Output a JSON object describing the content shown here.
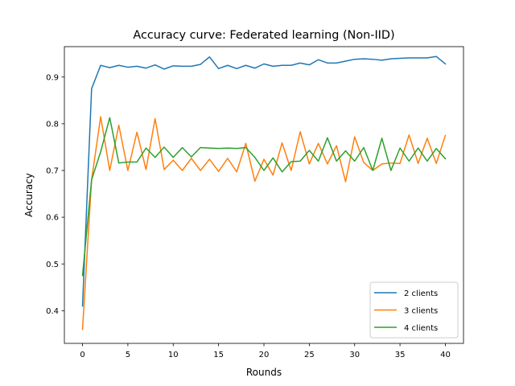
{
  "chart_data": {
    "type": "line",
    "title": "Accuracy curve: Federated learning (Non-IID)",
    "xlabel": "Rounds",
    "ylabel": "Accuracy",
    "xlim": [
      -2,
      42
    ],
    "ylim": [
      0.33,
      0.965
    ],
    "xticks": [
      0,
      5,
      10,
      15,
      20,
      25,
      30,
      35,
      40
    ],
    "yticks": [
      0.4,
      0.5,
      0.6,
      0.7,
      0.8,
      0.9
    ],
    "xtick_labels": [
      "0",
      "5",
      "10",
      "15",
      "20",
      "25",
      "30",
      "35",
      "40"
    ],
    "ytick_labels": [
      "0.4",
      "0.5",
      "0.6",
      "0.7",
      "0.8",
      "0.9"
    ],
    "grid": false,
    "legend_position": "lower-right",
    "x": [
      0,
      1,
      2,
      3,
      4,
      5,
      6,
      7,
      8,
      9,
      10,
      11,
      12,
      13,
      14,
      15,
      16,
      17,
      18,
      19,
      20,
      21,
      22,
      23,
      24,
      25,
      26,
      27,
      28,
      29,
      30,
      31,
      32,
      33,
      34,
      35,
      36,
      37,
      38,
      39,
      40
    ],
    "series": [
      {
        "name": "2 clients",
        "color": "#1f77b4",
        "values": [
          0.41,
          0.875,
          0.925,
          0.92,
          0.925,
          0.921,
          0.923,
          0.919,
          0.926,
          0.917,
          0.924,
          0.923,
          0.923,
          0.927,
          0.943,
          0.918,
          0.925,
          0.918,
          0.925,
          0.919,
          0.928,
          0.923,
          0.925,
          0.925,
          0.93,
          0.926,
          0.937,
          0.93,
          0.93,
          0.934,
          0.938,
          0.939,
          0.938,
          0.936,
          0.939,
          0.94,
          0.941,
          0.941,
          0.941,
          0.944,
          0.928
        ]
      },
      {
        "name": "3 clients",
        "color": "#ff7f0e",
        "values": [
          0.36,
          0.68,
          0.815,
          0.7,
          0.797,
          0.7,
          0.782,
          0.702,
          0.811,
          0.702,
          0.722,
          0.7,
          0.726,
          0.7,
          0.724,
          0.698,
          0.726,
          0.697,
          0.758,
          0.677,
          0.724,
          0.69,
          0.759,
          0.7,
          0.783,
          0.714,
          0.758,
          0.714,
          0.753,
          0.676,
          0.772,
          0.717,
          0.7,
          0.714,
          0.716,
          0.715,
          0.776,
          0.715,
          0.769,
          0.715,
          0.775
        ]
      },
      {
        "name": "4 clients",
        "color": "#2ca02c",
        "values": [
          0.475,
          0.68,
          0.74,
          0.813,
          0.716,
          0.718,
          0.718,
          0.748,
          0.728,
          0.75,
          0.728,
          0.749,
          0.729,
          0.749,
          0.748,
          0.747,
          0.748,
          0.747,
          0.749,
          0.728,
          0.7,
          0.727,
          0.697,
          0.719,
          0.72,
          0.743,
          0.72,
          0.77,
          0.72,
          0.742,
          0.72,
          0.749,
          0.7,
          0.769,
          0.7,
          0.748,
          0.72,
          0.748,
          0.72,
          0.747,
          0.725
        ]
      }
    ]
  }
}
